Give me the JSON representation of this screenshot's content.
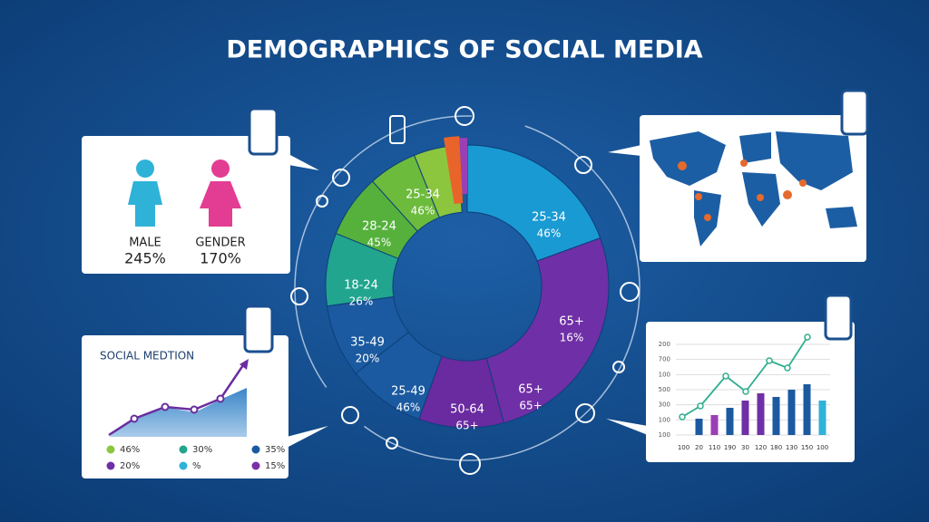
{
  "title": "DEMOGRAPHICS OF SOCIAL MEDIA",
  "gender_card": {
    "items": [
      {
        "label": "MALE",
        "value": "245%"
      },
      {
        "label": "GENDER",
        "value": "170%"
      }
    ]
  },
  "donut": {
    "segments": [
      {
        "label": "25-34",
        "value": "46%"
      },
      {
        "label": "65+",
        "value": "16%"
      },
      {
        "label": "65+",
        "value": "65+"
      },
      {
        "label": "50-64",
        "value": "65+"
      },
      {
        "label": "25-49",
        "value": "46%"
      },
      {
        "label": "35-49",
        "value": "20%"
      },
      {
        "label": "18-24",
        "value": "26%"
      },
      {
        "label": "28-24",
        "value": "45%"
      },
      {
        "label": "25-34",
        "value": "46%"
      }
    ]
  },
  "social_card": {
    "title": "SOCIAL MEDTION",
    "legend": [
      "46%",
      "30%",
      "35%",
      "20%",
      "%",
      "15%"
    ]
  },
  "bar_card": {
    "y_labels": [
      "200",
      "700",
      "100",
      "500",
      "300",
      "100",
      "100"
    ],
    "x_labels": [
      "100",
      "20",
      "110",
      "190",
      "30",
      "120",
      "180",
      "130",
      "150",
      "100"
    ]
  }
}
